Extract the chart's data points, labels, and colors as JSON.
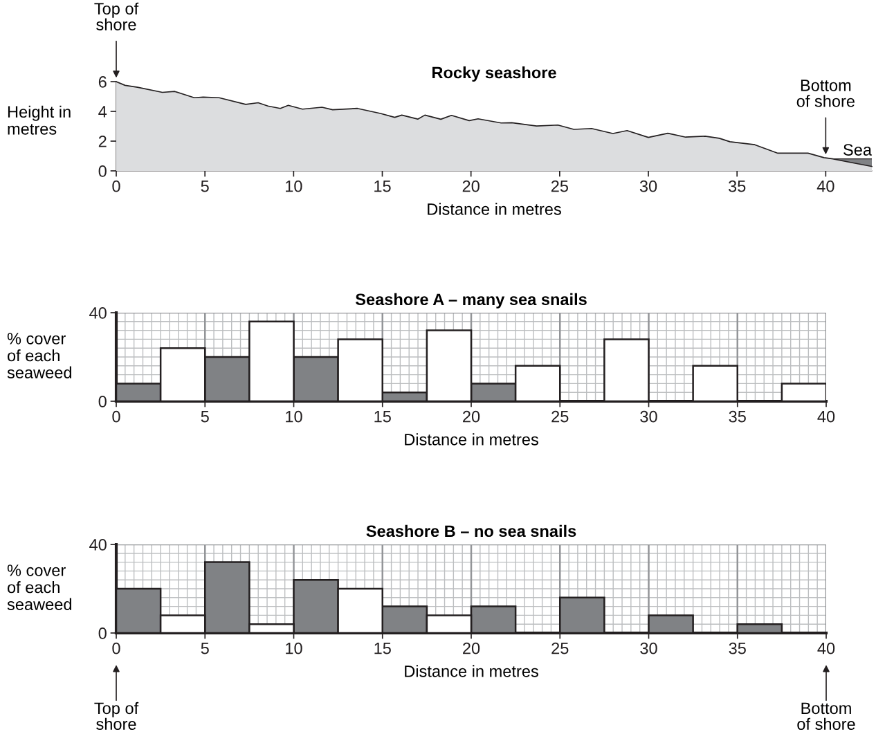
{
  "chart_data": [
    {
      "type": "area",
      "title": "Rocky seashore",
      "xlabel": "Distance in metres",
      "ylabel": "Height in\nmetres",
      "series": [
        {
          "color": "#dcdddf",
          "x": [
            0,
            0.5,
            1.2,
            2.6,
            3.3,
            4.4,
            4.9,
            5.8,
            7.3,
            8.0,
            8.55,
            9.25,
            9.7,
            10.5,
            11.6,
            12.2,
            13.6,
            14.9,
            15.7,
            16.1,
            17.0,
            17.4,
            18.3,
            18.9,
            19.9,
            20.4,
            21.7,
            22.3,
            23.7,
            24.9,
            25.8,
            26.8,
            28.0,
            28.8,
            30.0,
            31.1,
            32.1,
            33.2,
            34.0,
            34.6,
            36.0,
            37.3,
            39.0,
            39.9,
            40.4,
            41.4,
            42.6
          ],
          "values": [
            6.0,
            5.75,
            5.62,
            5.28,
            5.34,
            4.92,
            4.96,
            4.92,
            4.47,
            4.58,
            4.36,
            4.2,
            4.41,
            4.15,
            4.28,
            4.11,
            4.2,
            3.86,
            3.6,
            3.75,
            3.48,
            3.75,
            3.47,
            3.73,
            3.38,
            3.5,
            3.22,
            3.24,
            3.02,
            3.08,
            2.79,
            2.85,
            2.51,
            2.71,
            2.25,
            2.53,
            2.27,
            2.33,
            2.19,
            1.96,
            1.76,
            1.19,
            1.19,
            0.89,
            0.81,
            0.57,
            0.3
          ]
        },
        {
          "name": "Sea",
          "color": "#808285",
          "x": [
            40.4,
            41.4,
            42.6
          ],
          "values": [
            0.81,
            0.81,
            0.81
          ]
        }
      ],
      "xlim": [
        0,
        42.6
      ],
      "xticks": [
        0,
        5,
        10,
        15,
        20,
        25,
        30,
        35,
        40
      ],
      "ylim": [
        0,
        6
      ],
      "yticks": [
        0,
        2,
        4,
        6
      ],
      "annotations": [
        {
          "text": "Top of\nshore",
          "x": 0,
          "y": 6.0
        },
        {
          "text": "Bottom\nof shore",
          "x": 40,
          "y": 0.85
        }
      ]
    },
    {
      "type": "bar",
      "title": "Seashore A – many sea snails",
      "xlabel": "Distance in metres",
      "ylabel": "% cover\nof each\nseaweed",
      "series": [
        {
          "color": "#808285",
          "x": [
            1.25,
            6.25,
            11.25,
            16.25,
            21.25
          ],
          "values": [
            8,
            20,
            20,
            4,
            8
          ]
        },
        {
          "color": "#ffffff",
          "x": [
            3.75,
            8.75,
            13.75,
            18.75,
            23.75,
            28.75,
            33.75,
            38.75
          ],
          "values": [
            24,
            36,
            28,
            32,
            16,
            28,
            16,
            8
          ]
        }
      ],
      "xlim": [
        0,
        40
      ],
      "xticks": [
        0,
        5,
        10,
        15,
        20,
        25,
        30,
        35,
        40
      ],
      "ylim": [
        0,
        40
      ],
      "yticks": [
        0,
        40
      ],
      "grid": true
    },
    {
      "type": "bar",
      "title": "Seashore B – no sea snails",
      "xlabel": "Distance in metres",
      "ylabel": "% cover\nof each\nseaweed",
      "series": [
        {
          "color": "#808285",
          "x": [
            1.25,
            6.25,
            11.25,
            16.25,
            21.25,
            26.25,
            31.25,
            36.25
          ],
          "values": [
            20,
            32,
            24,
            12,
            12,
            16,
            8,
            4
          ]
        },
        {
          "color": "#ffffff",
          "x": [
            3.75,
            8.75,
            13.75,
            18.75
          ],
          "values": [
            8,
            4,
            20,
            8
          ]
        }
      ],
      "xlim": [
        0,
        40
      ],
      "xticks": [
        0,
        5,
        10,
        15,
        20,
        25,
        30,
        35,
        40
      ],
      "ylim": [
        0,
        40
      ],
      "yticks": [
        0,
        40
      ],
      "grid": true,
      "annotations": [
        "Top of\nshore",
        "Bottom\nof shore"
      ]
    }
  ]
}
